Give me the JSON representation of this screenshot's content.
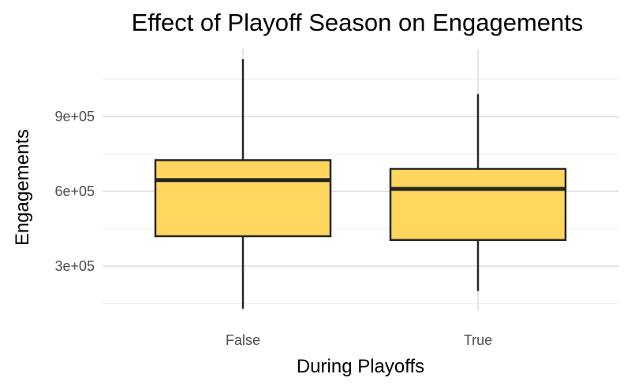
{
  "chart_data": {
    "type": "boxplot",
    "title": "Effect of Playoff Season on Engagements",
    "xlabel": "During Playoffs",
    "ylabel": "Engagements",
    "categories": [
      "False",
      "True"
    ],
    "boxes": [
      {
        "category": "False",
        "min": 130000,
        "q1": 420000,
        "median": 645000,
        "q3": 725000,
        "max": 1130000
      },
      {
        "category": "True",
        "min": 200000,
        "q1": 405000,
        "median": 610000,
        "q3": 690000,
        "max": 990000
      }
    ],
    "yticks": [
      300000,
      600000,
      900000
    ],
    "ytick_labels": [
      "3e+05",
      "6e+05",
      "9e+05"
    ],
    "ylim": [
      100000,
      1130000
    ],
    "grid": true,
    "legend": "none",
    "colors": {
      "box_fill": "#FFD65E",
      "box_stroke": "#262626",
      "grid_major": "#e5e5e5",
      "grid_minor": "#f0f0f0"
    }
  }
}
